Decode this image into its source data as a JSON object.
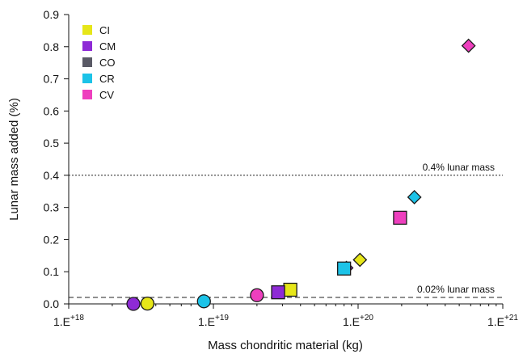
{
  "chart_data": {
    "type": "scatter",
    "xlabel": "Mass chondritic material (kg)",
    "ylabel": "Lunar mass added (%)",
    "xscale": "log",
    "xlim": [
      1e+18,
      1e+21
    ],
    "ylim": [
      0,
      0.9
    ],
    "x_tick_labels": [
      {
        "value": 1e+18,
        "base": "1.E",
        "exp": "+18"
      },
      {
        "value": 1e+19,
        "base": "1.E",
        "exp": "+19"
      },
      {
        "value": 1e+20,
        "base": "1.E",
        "exp": "+20"
      },
      {
        "value": 1e+21,
        "base": "1.E",
        "exp": "+21"
      }
    ],
    "y_ticks": [
      0.0,
      0.1,
      0.2,
      0.3,
      0.4,
      0.5,
      0.6,
      0.7,
      0.8,
      0.9
    ],
    "y_tick_labels": [
      "0.0",
      "0.1",
      "0.2",
      "0.3",
      "0.4",
      "0.5",
      "0.6",
      "0.7",
      "0.8",
      "0.9"
    ],
    "grid": false,
    "legend": "top-left",
    "reference_lines": [
      {
        "y": 0.4,
        "style": "dotted",
        "label": "0.4% lunar mass"
      },
      {
        "y": 0.02,
        "style": "dashed",
        "label": "0.02% lunar mass"
      }
    ],
    "series": [
      {
        "name": "CI",
        "color": "#e6e619",
        "points": [
          {
            "x": 3.5e+18,
            "y": 0.001,
            "marker": "circle"
          },
          {
            "x": 3.4e+19,
            "y": 0.044,
            "marker": "square"
          },
          {
            "x": 1.03e+20,
            "y": 0.137,
            "marker": "diamond"
          }
        ]
      },
      {
        "name": "CM",
        "color": "#8e2ad6",
        "points": [
          {
            "x": 2.8e+18,
            "y": 0.0,
            "marker": "circle"
          },
          {
            "x": 2.8e+19,
            "y": 0.036,
            "marker": "square"
          },
          {
            "x": 8.3e+19,
            "y": 0.112,
            "marker": "diamond"
          }
        ]
      },
      {
        "name": "CO",
        "color": "#5a5a66",
        "points": []
      },
      {
        "name": "CR",
        "color": "#1cc3e8",
        "points": [
          {
            "x": 8.6e+18,
            "y": 0.008,
            "marker": "circle"
          },
          {
            "x": 8e+19,
            "y": 0.11,
            "marker": "square"
          },
          {
            "x": 2.45e+20,
            "y": 0.332,
            "marker": "diamond"
          }
        ]
      },
      {
        "name": "CV",
        "color": "#ee3fbe",
        "points": [
          {
            "x": 2e+19,
            "y": 0.027,
            "marker": "circle"
          },
          {
            "x": 1.95e+20,
            "y": 0.268,
            "marker": "square"
          },
          {
            "x": 5.8e+20,
            "y": 0.803,
            "marker": "diamond"
          }
        ]
      }
    ]
  }
}
